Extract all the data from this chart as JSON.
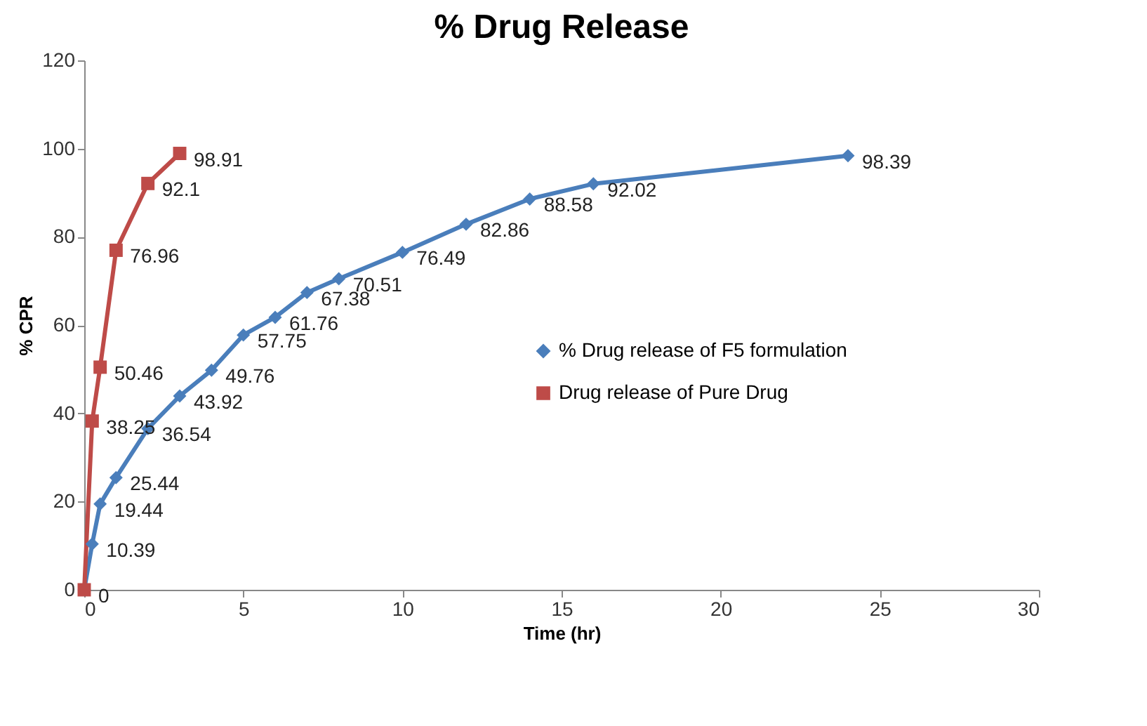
{
  "chart_data": {
    "type": "line",
    "title": "% Drug Release",
    "xlabel": "Time (hr)",
    "ylabel": "% CPR",
    "xlim": [
      0,
      30
    ],
    "xticks": [
      0,
      5,
      10,
      15,
      20,
      25,
      30
    ],
    "ylim": [
      0,
      120
    ],
    "yticks": [
      0,
      20,
      40,
      60,
      80,
      100,
      120
    ],
    "grid": false,
    "legend": "right",
    "series": [
      {
        "name": "% Drug release of F5 formulation",
        "color": "#4a7ebb",
        "marker": "diamond",
        "x": [
          0,
          0.25,
          0.5,
          1,
          2,
          3,
          4,
          5,
          6,
          7,
          8,
          10,
          12,
          14,
          16,
          24
        ],
        "values": [
          0,
          10.39,
          19.44,
          25.44,
          36.54,
          43.92,
          49.76,
          57.75,
          61.76,
          67.38,
          70.51,
          76.49,
          82.86,
          88.58,
          92.02,
          98.39
        ],
        "value_labels": [
          null,
          "10.39",
          "19.44",
          "25.44",
          "36.54",
          "43.92",
          "49.76",
          "57.75",
          "61.76",
          "67.38",
          "70.51",
          "76.49",
          "82.86",
          "88.58",
          "92.02",
          "98.39"
        ]
      },
      {
        "name": "Drug release of Pure Drug",
        "color": "#be4b48",
        "marker": "square",
        "x": [
          0,
          0.25,
          0.5,
          1,
          2,
          3
        ],
        "values": [
          0,
          38.25,
          50.46,
          76.96,
          92.1,
          98.91
        ],
        "value_labels": [
          "0",
          "38.25",
          "50.46",
          "76.96",
          "92.1",
          "98.91"
        ]
      }
    ]
  }
}
